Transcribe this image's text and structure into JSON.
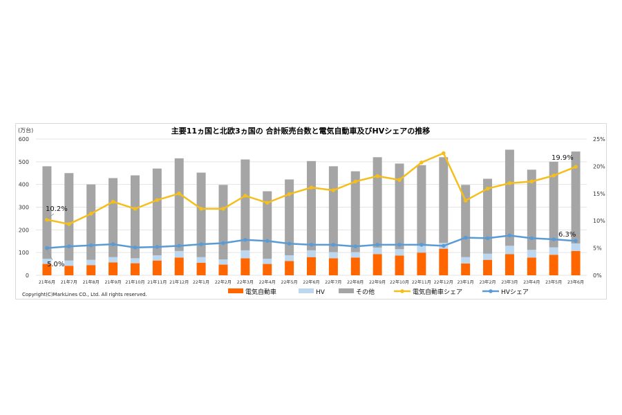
{
  "chart_data": {
    "type": "bar",
    "title": "主要11ヵ国と北欧3ヵ国の 合計販売台数と電気自動車及びHVシェアの推移",
    "ylabel": "(万台)",
    "ylim": [
      0,
      600
    ],
    "y_ticks": [
      "0",
      "100",
      "200",
      "300",
      "400",
      "500",
      "600"
    ],
    "y2lim": [
      0,
      25
    ],
    "y2_ticks": [
      "0%",
      "5%",
      "10%",
      "15%",
      "20%",
      "25%"
    ],
    "grid": true,
    "legend": "bottom",
    "categories": [
      "21年6月",
      "21年7月",
      "21年8月",
      "21年9月",
      "21年10月",
      "21年11月",
      "21年12月",
      "22年1月",
      "22年2月",
      "22年3月",
      "22年4月",
      "22年5月",
      "22年6月",
      "22年7月",
      "22年8月",
      "22年9月",
      "22年10月",
      "22年11月",
      "22年12月",
      "23年1月",
      "23年2月",
      "23年3月",
      "23年4月",
      "23年5月",
      "23年6月"
    ],
    "series": [
      {
        "name": "電気自動車",
        "kind": "bar",
        "axis": "left",
        "color": "#ff6600",
        "values": [
          50,
          42,
          45,
          57,
          53,
          65,
          78,
          55,
          47,
          75,
          50,
          63,
          80,
          75,
          78,
          93,
          87,
          100,
          117,
          52,
          68,
          93,
          78,
          90,
          107
        ]
      },
      {
        "name": "HV",
        "kind": "bar",
        "axis": "left",
        "color": "#bdd7ee",
        "values": [
          23,
          23,
          23,
          23,
          22,
          23,
          29,
          25,
          23,
          35,
          23,
          25,
          30,
          27,
          24,
          29,
          28,
          30,
          26,
          28,
          27,
          37,
          34,
          33,
          33
        ]
      },
      {
        "name": "その他",
        "kind": "bar",
        "axis": "left",
        "color": "#a5a5a5",
        "values": [
          407,
          385,
          332,
          348,
          365,
          382,
          408,
          372,
          328,
          400,
          297,
          334,
          393,
          378,
          356,
          398,
          377,
          355,
          377,
          318,
          330,
          423,
          353,
          377,
          405
        ]
      },
      {
        "name": "電気自動車シェア",
        "kind": "line",
        "axis": "right",
        "color": "#f4bf1c",
        "values": [
          10.2,
          9.4,
          11.3,
          13.5,
          12.2,
          13.8,
          15.0,
          12.2,
          12.2,
          14.6,
          13.3,
          14.9,
          16.1,
          15.6,
          17.2,
          18.2,
          17.5,
          20.7,
          22.4,
          13.7,
          15.9,
          16.9,
          17.2,
          18.3,
          19.9
        ]
      },
      {
        "name": "HVシェア",
        "kind": "line",
        "axis": "right",
        "color": "#5b9bd5",
        "values": [
          5.0,
          5.3,
          5.5,
          5.7,
          5.1,
          5.2,
          5.4,
          5.7,
          5.9,
          6.5,
          6.3,
          5.8,
          5.6,
          5.6,
          5.3,
          5.6,
          5.6,
          5.6,
          5.4,
          6.9,
          6.8,
          7.3,
          6.8,
          6.6,
          6.3
        ]
      }
    ],
    "annotations": [
      "10.2%",
      "5.0%",
      "19.9%",
      "6.3%"
    ],
    "copyright": "Copyright(C)MarkLines CO., Ltd. All rights reserved."
  }
}
